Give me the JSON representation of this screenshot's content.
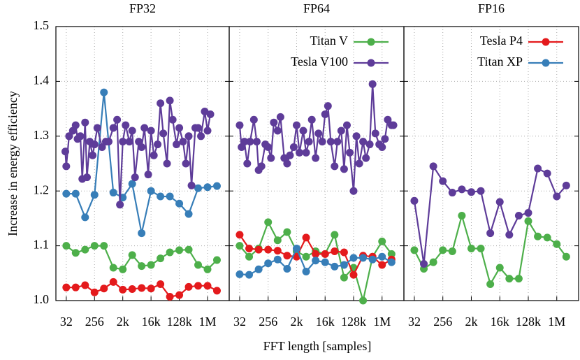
{
  "chart_data": [
    {
      "type": "line",
      "title": "FP32",
      "ylabel": "Increase in energy efficiency",
      "xlim": [
        3.9,
        22.3
      ],
      "xticks": [
        {
          "value": 5,
          "label": "32"
        },
        {
          "value": 8,
          "label": "256"
        },
        {
          "value": 11,
          "label": "2k"
        },
        {
          "value": 14,
          "label": "16k"
        },
        {
          "value": 17,
          "label": "128k"
        },
        {
          "value": 20,
          "label": "1M"
        }
      ],
      "ylim": [
        1.0,
        1.5
      ],
      "yticks": [
        {
          "value": 1.0,
          "label": "1.0"
        },
        1.1,
        1.2,
        1.3,
        1.4,
        {
          "value": 1.5,
          "label": "1.5"
        }
      ],
      "grid": true,
      "series": [
        {
          "color": "#4daf4a",
          "x": [
            5,
            6,
            7,
            8,
            9,
            10,
            11,
            12,
            13,
            14,
            15,
            16,
            17,
            18,
            19,
            20,
            21
          ],
          "values": [
            1.1,
            1.087,
            1.093,
            1.1,
            1.1,
            1.06,
            1.057,
            1.083,
            1.063,
            1.065,
            1.077,
            1.088,
            1.092,
            1.093,
            1.065,
            1.057,
            1.074
          ]
        },
        {
          "color": "#e41a1c",
          "x": [
            5,
            6,
            7,
            8,
            9,
            10,
            11,
            12,
            13,
            14,
            15,
            16,
            17,
            18,
            19,
            20,
            21
          ],
          "values": [
            1.024,
            1.024,
            1.028,
            1.015,
            1.022,
            1.034,
            1.02,
            1.021,
            1.023,
            1.022,
            1.03,
            1.007,
            1.01,
            1.025,
            1.027,
            1.027,
            1.018
          ]
        },
        {
          "color": "#377eb8",
          "x": [
            5,
            6,
            7,
            8,
            9,
            10,
            11,
            12,
            13,
            14,
            15,
            16,
            17,
            18,
            19,
            20,
            21
          ],
          "values": [
            1.195,
            1.195,
            1.152,
            1.193,
            1.38,
            1.197,
            1.188,
            1.213,
            1.123,
            1.2,
            1.19,
            1.19,
            1.177,
            1.158,
            1.205,
            1.207,
            1.209
          ]
        },
        {
          "color": "#5e3c99",
          "x": [
            4.9,
            5,
            5.3,
            5.7,
            6,
            6.2,
            6.5,
            6.7,
            7,
            7.2,
            7.5,
            7.8,
            8,
            8.3,
            8.8,
            9.2,
            9.5,
            10,
            10.4,
            10.7,
            11,
            11.3,
            11.7,
            12,
            12.3,
            12.7,
            13,
            13.3,
            13.7,
            14,
            14.3,
            14.7,
            15,
            15.3,
            15.7,
            16,
            16.3,
            16.7,
            17,
            17.4,
            17.7,
            18,
            18.3,
            18.7,
            19,
            19.3,
            19.7,
            20,
            20.3
          ],
          "values": [
            1.272,
            1.245,
            1.3,
            1.31,
            1.32,
            1.295,
            1.3,
            1.222,
            1.325,
            1.225,
            1.29,
            1.265,
            1.285,
            1.315,
            1.28,
            1.29,
            1.29,
            1.315,
            1.33,
            1.175,
            1.29,
            1.32,
            1.29,
            1.31,
            1.225,
            1.29,
            1.28,
            1.315,
            1.23,
            1.31,
            1.265,
            1.285,
            1.36,
            1.305,
            1.25,
            1.365,
            1.33,
            1.285,
            1.315,
            1.29,
            1.25,
            1.3,
            1.21,
            1.315,
            1.315,
            1.3,
            1.345,
            1.31,
            1.34
          ]
        }
      ]
    },
    {
      "type": "line",
      "title": "FP64",
      "xlabel": "FFT length [samples]",
      "xlim": [
        3.9,
        22.3
      ],
      "xticks": [
        {
          "value": 5,
          "label": "32"
        },
        {
          "value": 8,
          "label": "256"
        },
        {
          "value": 11,
          "label": "2k"
        },
        {
          "value": 14,
          "label": "16k"
        },
        {
          "value": 17,
          "label": "128k"
        },
        {
          "value": 20,
          "label": "1M"
        }
      ],
      "ylim": [
        1.0,
        1.5
      ],
      "yticks": [
        1.0,
        1.1,
        1.2,
        1.3,
        1.4,
        1.5
      ],
      "grid": true,
      "legend": [
        {
          "name": "Titan V",
          "color": "#4daf4a"
        },
        {
          "name": "Tesla V100",
          "color": "#5e3c99"
        }
      ],
      "series": [
        {
          "color": "#4daf4a",
          "x": [
            5,
            6,
            7,
            8,
            9,
            10,
            11,
            12,
            13,
            14,
            15,
            16,
            17,
            18,
            19,
            20,
            21
          ],
          "values": [
            1.1,
            1.08,
            1.095,
            1.143,
            1.11,
            1.125,
            1.09,
            1.08,
            1.09,
            1.085,
            1.12,
            1.042,
            1.06,
            1.0,
            1.08,
            1.108,
            1.085
          ]
        },
        {
          "color": "#e41a1c",
          "x": [
            5,
            6,
            7,
            8,
            9,
            10,
            11,
            12,
            13,
            14,
            15,
            16,
            17,
            18,
            19,
            20,
            21
          ],
          "values": [
            1.12,
            1.095,
            1.093,
            1.093,
            1.091,
            1.082,
            1.08,
            1.115,
            1.085,
            1.085,
            1.09,
            1.088,
            1.047,
            1.082,
            1.08,
            1.065,
            1.075
          ]
        },
        {
          "color": "#377eb8",
          "x": [
            5,
            6,
            7,
            8,
            9,
            10,
            11,
            12,
            13,
            14,
            15,
            16,
            17,
            18,
            19,
            20,
            21
          ],
          "values": [
            1.048,
            1.047,
            1.057,
            1.068,
            1.075,
            1.058,
            1.095,
            1.053,
            1.073,
            1.07,
            1.062,
            1.065,
            1.078,
            1.078,
            1.075,
            1.08,
            1.07
          ]
        },
        {
          "color": "#5e3c99",
          "x": [
            5,
            5.2,
            5.5,
            5.8,
            6.1,
            6.5,
            6.8,
            7,
            7.3,
            7.7,
            8,
            8.3,
            8.6,
            9,
            9.3,
            9.7,
            10,
            10.3,
            10.7,
            11,
            11.3,
            11.7,
            12,
            12.3,
            12.6,
            13,
            13.3,
            13.7,
            14,
            14.3,
            14.6,
            15,
            15.3,
            15.7,
            16,
            16.3,
            16.6,
            17,
            17.3,
            17.6,
            18,
            18.3,
            18.7,
            19,
            19.3,
            19.7,
            20,
            20.3,
            20.6,
            21,
            21.2
          ],
          "values": [
            1.32,
            1.28,
            1.29,
            1.25,
            1.29,
            1.33,
            1.29,
            1.238,
            1.245,
            1.285,
            1.28,
            1.26,
            1.325,
            1.31,
            1.335,
            1.26,
            1.25,
            1.265,
            1.28,
            1.32,
            1.27,
            1.31,
            1.27,
            1.29,
            1.33,
            1.26,
            1.305,
            1.29,
            1.34,
            1.355,
            1.29,
            1.245,
            1.29,
            1.31,
            1.24,
            1.32,
            1.27,
            1.2,
            1.3,
            1.25,
            1.29,
            1.26,
            1.285,
            1.395,
            1.305,
            1.285,
            1.28,
            1.295,
            1.33,
            1.32,
            1.32
          ]
        }
      ]
    },
    {
      "type": "line",
      "title": "FP16",
      "xlim": [
        3.9,
        22.3
      ],
      "xticks": [
        {
          "value": 5,
          "label": "32"
        },
        {
          "value": 8,
          "label": "256"
        },
        {
          "value": 11,
          "label": "2k"
        },
        {
          "value": 14,
          "label": "16k"
        },
        {
          "value": 17,
          "label": "128k"
        },
        {
          "value": 20,
          "label": "1M"
        }
      ],
      "ylim": [
        1.0,
        1.5
      ],
      "yticks": [
        1.0,
        1.1,
        1.2,
        1.3,
        1.4,
        1.5
      ],
      "grid": true,
      "legend": [
        {
          "name": "Tesla P4",
          "color": "#e41a1c"
        },
        {
          "name": "Titan XP",
          "color": "#377eb8"
        }
      ],
      "series": [
        {
          "color": "#4daf4a",
          "x": [
            5,
            6,
            7,
            8,
            9,
            10,
            11,
            12,
            13,
            14,
            15,
            16,
            17,
            18,
            19,
            20,
            21
          ],
          "values": [
            1.092,
            1.058,
            1.07,
            1.092,
            1.09,
            1.155,
            1.095,
            1.095,
            1.03,
            1.06,
            1.04,
            1.04,
            1.145,
            1.117,
            1.115,
            1.103,
            1.08
          ]
        },
        {
          "color": "#5e3c99",
          "x": [
            5,
            6,
            7,
            8,
            9,
            10,
            11,
            12,
            13,
            14,
            15,
            16,
            17,
            18,
            19,
            20,
            21
          ],
          "values": [
            1.182,
            1.067,
            1.245,
            1.218,
            1.197,
            1.203,
            1.198,
            1.2,
            1.123,
            1.18,
            1.12,
            1.155,
            1.16,
            1.241,
            1.232,
            1.19,
            1.21
          ]
        }
      ]
    }
  ]
}
